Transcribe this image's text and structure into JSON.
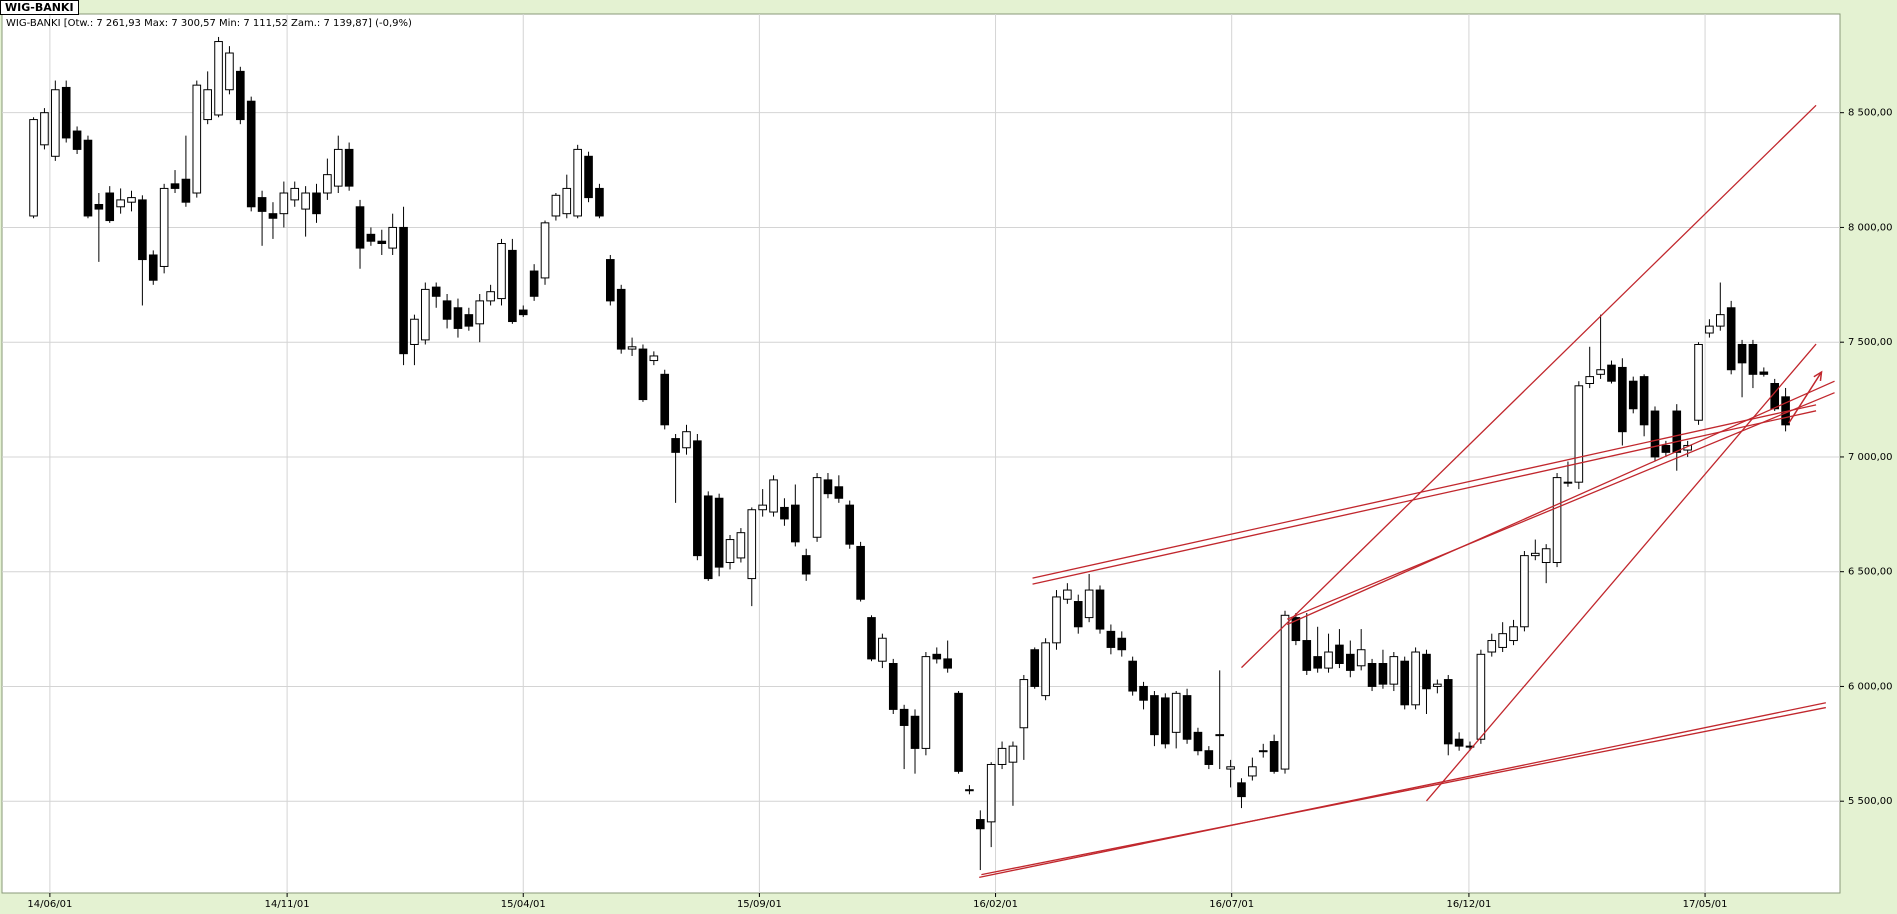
{
  "tab_label": "WIG-BANKI",
  "chart_data": {
    "type": "candlestick",
    "title": "WIG-BANKI [Otw.: 7 261,93  Max: 7 300,57  Min: 7 111,52  Zam.: 7 139,87] (-0,9%)",
    "open": [
      8050,
      8360,
      8310,
      8610,
      8420,
      8380,
      8100,
      8150,
      8090,
      8110,
      8120,
      7880,
      7830,
      8190,
      8210,
      8150,
      8470,
      8490,
      8600,
      8680,
      8550,
      8130,
      8060,
      8060,
      8120,
      8080,
      8150,
      8150,
      8180,
      8340,
      8090,
      7970,
      7940,
      7910,
      8000,
      7490,
      7510,
      7740,
      7680,
      7650,
      7620,
      7580,
      7680,
      7690,
      7900,
      7640,
      7810,
      7780,
      8050,
      8060,
      8050,
      8310,
      8170,
      7860,
      7730,
      7470,
      7470,
      7420,
      7360,
      7080,
      7040,
      7070,
      6830,
      6820,
      6540,
      6560,
      6470,
      6770,
      6760,
      6780,
      6790,
      6570,
      6650,
      6900,
      6870,
      6790,
      6610,
      6300,
      6110,
      6100,
      5900,
      5870,
      5730,
      6140,
      6120,
      5970,
      5550,
      5420,
      5410,
      5660,
      5670,
      5820,
      6160,
      5960,
      6190,
      6380,
      6370,
      6300,
      6420,
      6240,
      6210,
      6110,
      6000,
      5960,
      5950,
      5800,
      5960,
      5800,
      5720,
      5790,
      5640,
      5580,
      5610,
      5720,
      5760,
      5640,
      6300,
      6200,
      6130,
      6080,
      6180,
      6140,
      6090,
      6100,
      6100,
      6010,
      6110,
      5920,
      6140,
      6000,
      6030,
      5770,
      5740,
      5770,
      6150,
      6170,
      6200,
      6260,
      6570,
      6540,
      6540,
      6890,
      6890,
      7320,
      7360,
      7400,
      7390,
      7330,
      7350,
      7200,
      7050,
      7200,
      7030,
      7160,
      7540,
      7570,
      7650,
      7490,
      7490,
      7370,
      7320,
      7261.93
    ],
    "high": [
      8480,
      8520,
      8640,
      8640,
      8440,
      8400,
      8150,
      8180,
      8170,
      8160,
      8140,
      7900,
      8190,
      8250,
      8400,
      8640,
      8680,
      8830,
      8790,
      8700,
      8570,
      8160,
      8110,
      8200,
      8200,
      8180,
      8190,
      8300,
      8400,
      8370,
      8120,
      8000,
      7990,
      8060,
      8090,
      7620,
      7760,
      7760,
      7710,
      7690,
      7650,
      7710,
      7750,
      7950,
      7950,
      7660,
      7840,
      8030,
      8150,
      8230,
      8360,
      8330,
      8190,
      7880,
      7750,
      7520,
      7490,
      7460,
      7380,
      7100,
      7140,
      7100,
      6850,
      6840,
      6660,
      6690,
      6780,
      6860,
      6920,
      6820,
      6880,
      6600,
      6930,
      6930,
      6920,
      6810,
      6630,
      6310,
      6230,
      6120,
      5920,
      5900,
      6150,
      6170,
      6200,
      5980,
      5570,
      5460,
      5670,
      5760,
      5760,
      6050,
      6170,
      6210,
      6420,
      6450,
      6400,
      6490,
      6440,
      6270,
      6240,
      6130,
      6020,
      5980,
      5970,
      5980,
      5990,
      5820,
      5740,
      6070,
      5680,
      5600,
      5690,
      5750,
      5790,
      6330,
      6320,
      6320,
      6260,
      6230,
      6250,
      6200,
      6250,
      6120,
      6160,
      6150,
      6130,
      6170,
      6160,
      6030,
      6050,
      5800,
      5760,
      6160,
      6230,
      6280,
      6290,
      6590,
      6640,
      6620,
      6930,
      6980,
      7330,
      7480,
      7620,
      7420,
      7430,
      7350,
      7360,
      7220,
      7070,
      7230,
      7070,
      7500,
      7600,
      7760,
      7680,
      7510,
      7510,
      7390,
      7340,
      7300.57
    ],
    "low": [
      8040,
      8340,
      8290,
      8370,
      8320,
      8040,
      7850,
      8020,
      8060,
      8070,
      7660,
      7750,
      7800,
      8150,
      8090,
      8130,
      8450,
      8480,
      8580,
      8450,
      8070,
      7920,
      7950,
      8000,
      8090,
      7960,
      8020,
      8120,
      8150,
      8160,
      7820,
      7920,
      7880,
      7880,
      7400,
      7400,
      7490,
      7650,
      7560,
      7520,
      7550,
      7500,
      7660,
      7660,
      7580,
      7610,
      7680,
      7750,
      8030,
      8040,
      8040,
      8110,
      8040,
      7660,
      7450,
      7440,
      7240,
      7400,
      7120,
      6800,
      7010,
      6550,
      6460,
      6480,
      6510,
      6540,
      6350,
      6740,
      6740,
      6700,
      6610,
      6460,
      6630,
      6820,
      6800,
      6600,
      6370,
      6110,
      6080,
      5880,
      5640,
      5620,
      5700,
      6100,
      6060,
      5620,
      5530,
      5200,
      5300,
      5640,
      5480,
      5680,
      5990,
      5940,
      6160,
      6360,
      6230,
      6280,
      6230,
      6140,
      6130,
      5960,
      5900,
      5740,
      5730,
      5730,
      5750,
      5700,
      5640,
      5640,
      5560,
      5470,
      5590,
      5690,
      5620,
      5620,
      6180,
      6050,
      6060,
      6060,
      6080,
      6040,
      6070,
      5980,
      5990,
      5980,
      5900,
      5900,
      5880,
      5970,
      5700,
      5720,
      5720,
      5750,
      6130,
      6150,
      6180,
      6240,
      6550,
      6450,
      6520,
      6870,
      6860,
      7300,
      7340,
      7320,
      7050,
      7190,
      7090,
      6980,
      7000,
      6940,
      7000,
      7140,
      7520,
      7550,
      7360,
      7260,
      7300,
      7350,
      7200,
      7111.52
    ],
    "close": [
      8470,
      8500,
      8600,
      8390,
      8340,
      8050,
      8080,
      8030,
      8120,
      8130,
      7860,
      7770,
      8170,
      8170,
      8110,
      8620,
      8600,
      8810,
      8760,
      8470,
      8090,
      8070,
      8040,
      8150,
      8170,
      8150,
      8060,
      8230,
      8340,
      8180,
      7910,
      7940,
      7930,
      8000,
      7450,
      7600,
      7730,
      7700,
      7600,
      7560,
      7570,
      7680,
      7720,
      7930,
      7590,
      7620,
      7700,
      8020,
      8140,
      8170,
      8340,
      8130,
      8050,
      7680,
      7470,
      7480,
      7250,
      7440,
      7140,
      7020,
      7110,
      6570,
      6470,
      6520,
      6640,
      6670,
      6770,
      6790,
      6900,
      6730,
      6630,
      6490,
      6910,
      6840,
      6820,
      6620,
      6380,
      6120,
      6210,
      5900,
      5830,
      5730,
      6130,
      6120,
      6080,
      5630,
      5550,
      5380,
      5660,
      5730,
      5740,
      6030,
      6000,
      6190,
      6390,
      6420,
      6260,
      6420,
      6250,
      6170,
      6160,
      5980,
      5940,
      5790,
      5750,
      5970,
      5770,
      5720,
      5660,
      5790,
      5650,
      5520,
      5650,
      5720,
      5630,
      6310,
      6200,
      6070,
      6080,
      6150,
      6100,
      6070,
      6160,
      6000,
      6010,
      6130,
      5920,
      6150,
      5990,
      6010,
      5750,
      5740,
      5740,
      6140,
      6200,
      6230,
      6260,
      6570,
      6580,
      6600,
      6910,
      6890,
      7310,
      7350,
      7380,
      7330,
      7110,
      7210,
      7140,
      7000,
      7020,
      7020,
      7050,
      7490,
      7570,
      7620,
      7380,
      7410,
      7360,
      7360,
      7210,
      7139.87
    ],
    "up_color": "#ffffff",
    "down_color": "#000000",
    "xlim": [
      -2.9,
      166
    ],
    "xticks": [
      {
        "value": 1.5,
        "label": "14/06/01"
      },
      {
        "value": 23.3,
        "label": "14/11/01"
      },
      {
        "value": 45,
        "label": "15/04/01"
      },
      {
        "value": 66.7,
        "label": "15/09/01"
      },
      {
        "value": 88.4,
        "label": "16/02/01"
      },
      {
        "value": 110.1,
        "label": "16/07/01"
      },
      {
        "value": 131.9,
        "label": "16/12/01"
      },
      {
        "value": 153.6,
        "label": "17/05/01"
      }
    ],
    "ylim": [
      5100,
      8930
    ],
    "yticks": [
      {
        "value": 5500,
        "label": "5 500,00"
      },
      {
        "value": 6000,
        "label": "6 000,00"
      },
      {
        "value": 6500,
        "label": "6 500,00"
      },
      {
        "value": 7000,
        "label": "7 000,00"
      },
      {
        "value": 7500,
        "label": "7 500,00"
      },
      {
        "value": 8000,
        "label": "8 000,00"
      },
      {
        "value": 8500,
        "label": "8 500,00"
      }
    ],
    "grid": true,
    "trend_color": "#c1272d",
    "trend_lines": [
      {
        "x": [
          86.9,
          164.7
        ],
        "y": [
          5168,
          5929
        ]
      },
      {
        "x": [
          87.1,
          164.7
        ],
        "y": [
          5180,
          5908
        ]
      },
      {
        "x": [
          91.8,
          163.8
        ],
        "y": [
          6446,
          7201
        ]
      },
      {
        "x": [
          91.8,
          163.8
        ],
        "y": [
          6472,
          7227
        ]
      },
      {
        "x": [
          111,
          163.8
        ],
        "y": [
          6082,
          8532
        ]
      },
      {
        "x": [
          128,
          163.8
        ],
        "y": [
          5501,
          7492
        ]
      },
      {
        "x": [
          115.2,
          165.5
        ],
        "y": [
          6293,
          7280
        ]
      },
      {
        "x": [
          115.2,
          165.5
        ],
        "y": [
          6270,
          7330
        ]
      }
    ],
    "arrow": {
      "x": [
        161.3,
        164.3
      ],
      "y": [
        7148,
        7370
      ]
    }
  }
}
